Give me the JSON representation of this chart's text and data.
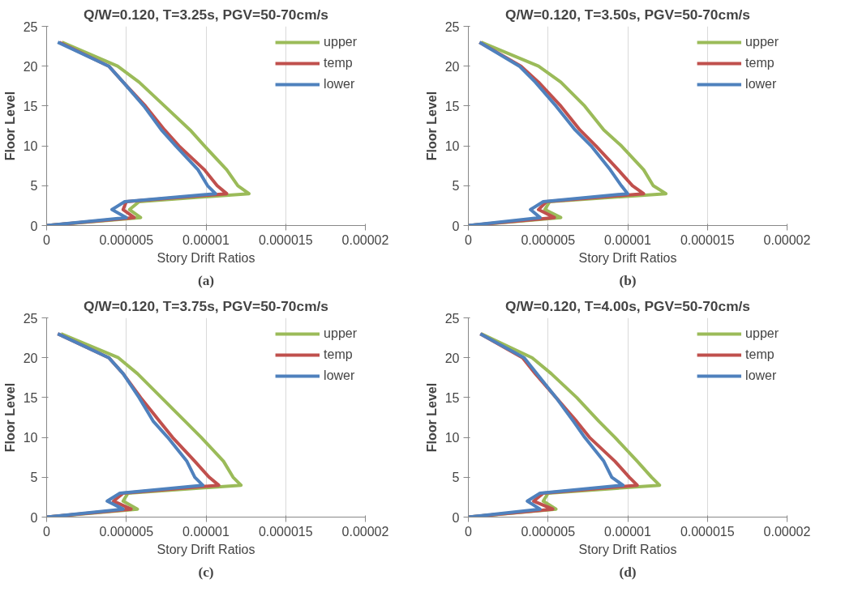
{
  "chart_data": [
    {
      "type": "line",
      "title": "Q/W=0.120, T=3.25s, PGV=50-70cm/s",
      "xlabel": "Story Drift Ratios",
      "ylabel": "Floor Level",
      "annotations": [
        "(a)"
      ],
      "xlim": [
        0,
        2e-05
      ],
      "xticks": [
        0,
        {
          "value": 5e-06,
          "label": "0.000005"
        },
        {
          "value": 1e-05,
          "label": "0.00001"
        },
        {
          "value": 1.5e-05,
          "label": "0.000015"
        },
        {
          "value": 2e-05,
          "label": "0.00002"
        }
      ],
      "ylim": [
        0,
        25
      ],
      "yticks": [
        0,
        5,
        10,
        15,
        20,
        25
      ],
      "grid": "x",
      "legend": "top right",
      "marker": "none",
      "line_style": "solid",
      "series": [
        {
          "name": "upper",
          "color": "#9bbb59",
          "x": [
            0,
            5.9e-06,
            5.2e-06,
            5.8e-06,
            1.27e-05,
            1.2e-05,
            1.13e-05,
            9.9e-06,
            9e-06,
            7.4e-06,
            5.8e-06,
            4.45e-06,
            9.6e-07
          ],
          "values": [
            0,
            1,
            2,
            3,
            4,
            5,
            7,
            10,
            12,
            15,
            18,
            20,
            23
          ]
        },
        {
          "name": "temp",
          "color": "#c0504d",
          "x": [
            0,
            5.5e-06,
            4.8e-06,
            5e-06,
            1.13e-05,
            1.07e-05,
            9.9e-06,
            8.3e-06,
            7.4e-06,
            6.2e-06,
            4.8e-06,
            3.9e-06,
            8e-07
          ],
          "values": [
            0,
            1,
            2,
            3,
            4,
            5,
            7,
            10,
            12,
            15,
            18,
            20,
            23
          ]
        },
        {
          "name": "lower",
          "color": "#4f81bd",
          "x": [
            0,
            5e-06,
            4.1e-06,
            4.9e-06,
            1.06e-05,
            1.01e-05,
            9.5e-06,
            8.1e-06,
            7.2e-06,
            6.1e-06,
            4.8e-06,
            3.9e-06,
            7e-07
          ],
          "values": [
            0,
            1,
            2,
            3,
            4,
            5,
            7,
            10,
            12,
            15,
            18,
            20,
            23
          ]
        }
      ]
    },
    {
      "type": "line",
      "title": "Q/W=0.120, T=3.50s, PGV=50-70cm/s",
      "xlabel": "Story Drift Ratios",
      "ylabel": "Floor Level",
      "annotations": [
        "(b)"
      ],
      "xlim": [
        0,
        2e-05
      ],
      "xticks": [
        0,
        {
          "value": 5e-06,
          "label": "0.000005"
        },
        {
          "value": 1e-05,
          "label": "0.00001"
        },
        {
          "value": 1.5e-05,
          "label": "0.000015"
        },
        {
          "value": 2e-05,
          "label": "0.00002"
        }
      ],
      "ylim": [
        0,
        25
      ],
      "yticks": [
        0,
        5,
        10,
        15,
        20,
        25
      ],
      "grid": "x",
      "legend": "top right",
      "marker": "none",
      "line_style": "solid",
      "series": [
        {
          "name": "upper",
          "color": "#9bbb59",
          "x": [
            0,
            5.8e-06,
            4.8e-06,
            5.1e-06,
            1.24e-05,
            1.16e-05,
            1.1e-05,
            9.6e-06,
            8.5e-06,
            7.3e-06,
            5.8e-06,
            4.4e-06,
            8e-07
          ],
          "values": [
            0,
            1,
            2,
            3,
            4,
            5,
            7,
            10,
            12,
            15,
            18,
            20,
            23
          ]
        },
        {
          "name": "temp",
          "color": "#c0504d",
          "x": [
            0,
            5.4e-06,
            4.4e-06,
            4.9e-06,
            1.1e-05,
            1.03e-05,
            9.4e-06,
            8e-06,
            7e-06,
            5.8e-06,
            4.4e-06,
            3.3e-06,
            7e-07
          ],
          "values": [
            0,
            1,
            2,
            3,
            4,
            5,
            7,
            10,
            12,
            15,
            18,
            20,
            23
          ]
        },
        {
          "name": "lower",
          "color": "#4f81bd",
          "x": [
            0,
            4.5e-06,
            3.9e-06,
            4.7e-06,
            1e-05,
            9.6e-06,
            8.9e-06,
            7.7e-06,
            6.7e-06,
            5.5e-06,
            4.2e-06,
            3.2e-06,
            7e-07
          ],
          "values": [
            0,
            1,
            2,
            3,
            4,
            5,
            7,
            10,
            12,
            15,
            18,
            20,
            23
          ]
        }
      ]
    },
    {
      "type": "line",
      "title": "Q/W=0.120, T=3.75s, PGV=50-70cm/s",
      "xlabel": "Story Drift Ratios",
      "ylabel": "Floor Level",
      "annotations": [
        "(c)"
      ],
      "xlim": [
        0,
        2e-05
      ],
      "xticks": [
        0,
        {
          "value": 5e-06,
          "label": "0.000005"
        },
        {
          "value": 1e-05,
          "label": "0.00001"
        },
        {
          "value": 1.5e-05,
          "label": "0.000015"
        },
        {
          "value": 2e-05,
          "label": "0.00002"
        }
      ],
      "ylim": [
        0,
        25
      ],
      "yticks": [
        0,
        5,
        10,
        15,
        20,
        25
      ],
      "grid": "x",
      "legend": "top right",
      "marker": "none",
      "line_style": "solid",
      "series": [
        {
          "name": "upper",
          "color": "#9bbb59",
          "x": [
            0,
            5.7e-06,
            4.8e-06,
            5.1e-06,
            1.22e-05,
            1.17e-05,
            1.11e-05,
            9.7e-06,
            8.7e-06,
            7.2e-06,
            5.7e-06,
            4.5e-06,
            9e-07
          ],
          "values": [
            0,
            1,
            2,
            3,
            4,
            5,
            7,
            10,
            12,
            15,
            18,
            20,
            23
          ]
        },
        {
          "name": "temp",
          "color": "#c0504d",
          "x": [
            0,
            5.3e-06,
            4.2e-06,
            4.8e-06,
            1.08e-05,
            1.02e-05,
            9.3e-06,
            7.9e-06,
            7.1e-06,
            5.9e-06,
            4.8e-06,
            3.9e-06,
            7e-07
          ],
          "values": [
            0,
            1,
            2,
            3,
            4,
            5,
            7,
            10,
            12,
            15,
            18,
            20,
            23
          ]
        },
        {
          "name": "lower",
          "color": "#4f81bd",
          "x": [
            0,
            4.8e-06,
            3.8e-06,
            4.6e-06,
            9.8e-06,
            9.3e-06,
            8.8e-06,
            7.6e-06,
            6.7e-06,
            5.8e-06,
            4.8e-06,
            3.9e-06,
            7e-07
          ],
          "values": [
            0,
            1,
            2,
            3,
            4,
            5,
            7,
            10,
            12,
            15,
            18,
            20,
            23
          ]
        }
      ]
    },
    {
      "type": "line",
      "title": "Q/W=0.120, T=4.00s, PGV=50-70cm/s",
      "xlabel": "Story Drift Ratios",
      "ylabel": "Floor Level",
      "annotations": [
        "(d)"
      ],
      "xlim": [
        0,
        2e-05
      ],
      "xticks": [
        0,
        {
          "value": 5e-06,
          "label": "0.000005"
        },
        {
          "value": 1e-05,
          "label": "0.00001"
        },
        {
          "value": 1.5e-05,
          "label": "0.000015"
        },
        {
          "value": 2e-05,
          "label": "0.00002"
        }
      ],
      "ylim": [
        0,
        25
      ],
      "yticks": [
        0,
        5,
        10,
        15,
        20,
        25
      ],
      "grid": "x",
      "legend": "top right",
      "marker": "none",
      "line_style": "solid",
      "series": [
        {
          "name": "upper",
          "color": "#9bbb59",
          "x": [
            0,
            5.5e-06,
            4.7e-06,
            5e-06,
            1.2e-05,
            1.15e-05,
            1.06e-05,
            9.2e-06,
            8.2e-06,
            6.8e-06,
            5.2e-06,
            4e-06,
            8e-07
          ],
          "values": [
            0,
            1,
            2,
            3,
            4,
            5,
            7,
            10,
            12,
            15,
            18,
            20,
            23
          ]
        },
        {
          "name": "temp",
          "color": "#c0504d",
          "x": [
            0,
            5.3e-06,
            4.1e-06,
            4.7e-06,
            1.06e-05,
            1.01e-05,
            9.2e-06,
            7.6e-06,
            6.8e-06,
            5.5e-06,
            4.2e-06,
            3.4e-06,
            7.5e-07
          ],
          "values": [
            0,
            1,
            2,
            3,
            4,
            5,
            7,
            10,
            12,
            15,
            18,
            20,
            23
          ]
        },
        {
          "name": "lower",
          "color": "#4f81bd",
          "x": [
            0,
            4.5e-06,
            3.7e-06,
            4.5e-06,
            9.7e-06,
            9e-06,
            8.5e-06,
            7.3e-06,
            6.6e-06,
            5.5e-06,
            4.3e-06,
            3.5e-06,
            7.5e-07
          ],
          "values": [
            0,
            1,
            2,
            3,
            4,
            5,
            7,
            10,
            12,
            15,
            18,
            20,
            23
          ]
        }
      ]
    }
  ]
}
